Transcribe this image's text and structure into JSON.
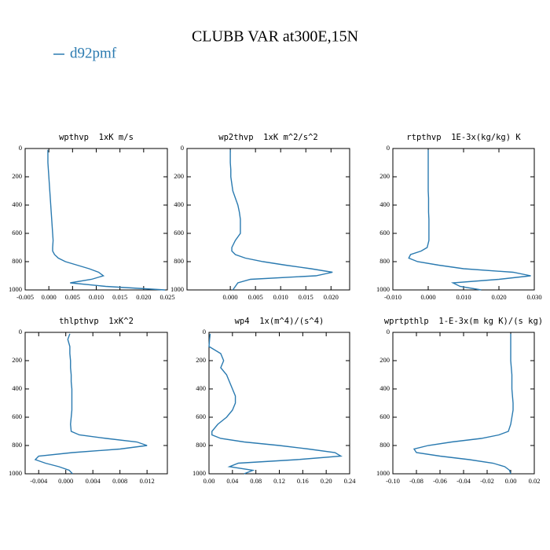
{
  "title": "CLUBB VAR at300E,15N",
  "series": {
    "name": "d92pmf",
    "color": "#2a7ab0"
  },
  "chart_data": [
    {
      "type": "line",
      "title": "wpthvp  1xK m/s",
      "levels": [
        10,
        50,
        100,
        150,
        200,
        250,
        300,
        350,
        400,
        450,
        500,
        550,
        600,
        650,
        700,
        725,
        750,
        775,
        800,
        825,
        850,
        875,
        900,
        925,
        950,
        975,
        1000
      ],
      "values": [
        -0.0002,
        -0.0002,
        -0.0002,
        -0.0001,
        0,
        0.0001,
        0.0002,
        0.0003,
        0.0004,
        0.0005,
        0.0006,
        0.0007,
        0.0008,
        0.0009,
        0.0008,
        0.0008,
        0.0012,
        0.002,
        0.0035,
        0.006,
        0.0085,
        0.0105,
        0.0115,
        0.009,
        0.0045,
        0.012,
        0.0245
      ],
      "xlim": [
        -0.005,
        0.025
      ],
      "xticks": [
        -0.005,
        {
          "value": 0,
          "label": "0.000"
        },
        0.005,
        {
          "value": 0.01,
          "label": "0.010"
        },
        0.015,
        {
          "value": 0.02,
          "label": "0.020"
        },
        0.025
      ],
      "ylim": [
        1000,
        0
      ],
      "yticks": [
        0,
        200,
        400,
        600,
        800,
        1000
      ]
    },
    {
      "type": "line",
      "title": "wp2thvp  1xK m^2/s^2",
      "levels": [
        10,
        50,
        100,
        150,
        200,
        250,
        300,
        350,
        400,
        450,
        500,
        550,
        600,
        650,
        700,
        725,
        750,
        775,
        800,
        825,
        850,
        875,
        900,
        925,
        950,
        975,
        1000
      ],
      "values": [
        0,
        0,
        0,
        0.0001,
        0.0001,
        0.0003,
        0.0005,
        0.001,
        0.0015,
        0.0018,
        0.002,
        0.002,
        0.002,
        0.001,
        0.0003,
        0.0003,
        0.001,
        0.003,
        0.0065,
        0.011,
        0.016,
        0.0203,
        0.017,
        0.004,
        0.0015,
        0.001,
        0.0005
      ],
      "xlim": [
        -0.0086,
        0.0237
      ],
      "xticks": [
        {
          "value": 0,
          "label": "0.000"
        },
        0.005,
        {
          "value": 0.01,
          "label": "0.010"
        },
        0.015,
        {
          "value": 0.02,
          "label": "0.020"
        }
      ],
      "ylim": [
        1000,
        0
      ],
      "yticks": [
        0,
        200,
        400,
        600,
        800,
        1000
      ]
    },
    {
      "type": "line",
      "title": "rtpthvp  1E-3x(kg/kg) K",
      "levels": [
        10,
        50,
        100,
        150,
        200,
        250,
        300,
        350,
        400,
        450,
        500,
        550,
        600,
        650,
        700,
        725,
        750,
        775,
        800,
        825,
        850,
        875,
        900,
        925,
        950,
        975,
        1000
      ],
      "values": [
        0,
        0,
        0,
        0,
        0,
        0,
        0,
        0.0001,
        0.0001,
        0.0001,
        0.0002,
        0.0002,
        0.0002,
        0.0002,
        -0.0003,
        -0.002,
        -0.005,
        -0.0055,
        -0.003,
        0.003,
        0.01,
        0.024,
        0.029,
        0.02,
        0.007,
        0.009,
        0.015
      ],
      "xlim": [
        -0.01,
        0.03
      ],
      "xticks": [
        {
          "value": -0.01,
          "label": "-0.010"
        },
        {
          "value": 0,
          "label": "0.000"
        },
        {
          "value": 0.01,
          "label": "0.010"
        },
        {
          "value": 0.02,
          "label": "0.020"
        },
        {
          "value": 0.03,
          "label": "0.030"
        }
      ],
      "ylim": [
        1000,
        0
      ],
      "yticks": [
        0,
        200,
        400,
        600,
        800,
        1000
      ]
    },
    {
      "type": "line",
      "title": "thlpthvp  1xK^2",
      "levels": [
        10,
        50,
        100,
        150,
        200,
        250,
        300,
        350,
        400,
        450,
        500,
        550,
        600,
        650,
        700,
        725,
        750,
        775,
        800,
        825,
        850,
        875,
        900,
        925,
        950,
        975,
        1000
      ],
      "values": [
        0.0006,
        0.0003,
        0.0006,
        0.0006,
        0.0007,
        0.0007,
        0.0008,
        0.0008,
        0.0009,
        0.0009,
        0.0009,
        0.0009,
        0.0008,
        0.0007,
        0.0008,
        0.002,
        0.006,
        0.0105,
        0.012,
        0.008,
        0.001,
        -0.004,
        -0.0045,
        -0.003,
        -0.001,
        0.0005,
        0.001
      ],
      "xlim": [
        -0.006,
        0.015
      ],
      "xticks": [
        -0.004,
        {
          "value": 0,
          "label": "0.000"
        },
        0.004,
        0.008,
        0.012
      ],
      "ylim": [
        1000,
        0
      ],
      "yticks": [
        0,
        200,
        400,
        600,
        800,
        1000
      ]
    },
    {
      "type": "line",
      "title": "wp4  1x(m^4)/(s^4)",
      "levels": [
        10,
        50,
        100,
        150,
        200,
        250,
        300,
        350,
        400,
        450,
        500,
        550,
        600,
        650,
        700,
        725,
        750,
        775,
        800,
        825,
        850,
        875,
        900,
        925,
        950,
        975,
        1000
      ],
      "values": [
        0.002,
        0.001,
        0,
        0.02,
        0.025,
        0.02,
        0.03,
        0.035,
        0.04,
        0.045,
        0.045,
        0.04,
        0.03,
        0.015,
        0.005,
        0.005,
        0.02,
        0.06,
        0.12,
        0.17,
        0.215,
        0.225,
        0.15,
        0.05,
        0.035,
        0.075,
        0.06
      ],
      "xlim": [
        0,
        0.24
      ],
      "xticks": [
        {
          "value": 0,
          "label": "0.00"
        },
        0.04,
        0.08,
        0.12,
        0.16,
        {
          "value": 0.2,
          "label": "0.20"
        },
        0.24
      ],
      "ylim": [
        1000,
        0
      ],
      "yticks": [
        0,
        200,
        400,
        600,
        800,
        1000
      ]
    },
    {
      "type": "line",
      "title": "wprtpthlp  1-E-3x(m kg K)/(s kg)",
      "levels": [
        10,
        50,
        100,
        150,
        200,
        250,
        300,
        350,
        400,
        450,
        500,
        550,
        600,
        650,
        700,
        725,
        750,
        775,
        800,
        825,
        850,
        875,
        900,
        925,
        950,
        975,
        1000
      ],
      "values": [
        0,
        0,
        0,
        0,
        0,
        0.0005,
        0.001,
        0.001,
        0.001,
        0.0015,
        0.002,
        0.002,
        0.001,
        0,
        -0.002,
        -0.01,
        -0.025,
        -0.05,
        -0.07,
        -0.082,
        -0.08,
        -0.06,
        -0.035,
        -0.015,
        -0.005,
        -0.001,
        0
      ],
      "xlim": [
        -0.1,
        0.02
      ],
      "xticks": [
        {
          "value": -0.1,
          "label": "-0.10"
        },
        -0.08,
        -0.06,
        -0.04,
        -0.02,
        {
          "value": 0,
          "label": "0.00"
        },
        0.02
      ],
      "ylim": [
        1000,
        0
      ],
      "yticks": [
        0,
        200,
        400,
        600,
        800,
        1000
      ]
    }
  ]
}
